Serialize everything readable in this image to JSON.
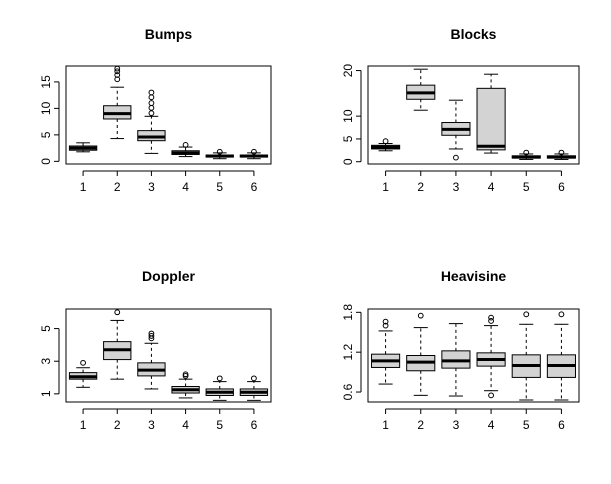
{
  "chart_data": [
    {
      "type": "boxplot",
      "title": "Bumps",
      "categories": [
        "1",
        "2",
        "3",
        "4",
        "5",
        "6"
      ],
      "ylim": [
        -0.5,
        18.0
      ],
      "yticks": [
        0,
        5,
        10,
        15
      ],
      "box_fill": "#d3d3d3",
      "boxes": [
        {
          "whisker_low": 1.8,
          "q1": 2.1,
          "median": 2.5,
          "q3": 2.9,
          "whisker_high": 3.5,
          "outliers": []
        },
        {
          "whisker_low": 4.3,
          "q1": 8.0,
          "median": 9.0,
          "q3": 10.5,
          "whisker_high": 14.0,
          "outliers": [
            15.5,
            16.3,
            17.0,
            17.5
          ]
        },
        {
          "whisker_low": 1.5,
          "q1": 3.9,
          "median": 4.6,
          "q3": 5.8,
          "whisker_high": 8.5,
          "outliers": [
            9.1,
            10.1,
            11.0,
            12.1,
            13.0
          ]
        },
        {
          "whisker_low": 0.9,
          "q1": 1.3,
          "median": 1.6,
          "q3": 2.0,
          "whisker_high": 2.7,
          "outliers": [
            3.1
          ]
        },
        {
          "whisker_low": 0.5,
          "q1": 0.8,
          "median": 1.0,
          "q3": 1.2,
          "whisker_high": 1.6,
          "outliers": [
            1.8
          ]
        },
        {
          "whisker_low": 0.5,
          "q1": 0.8,
          "median": 1.0,
          "q3": 1.2,
          "whisker_high": 1.6,
          "outliers": [
            1.8
          ]
        }
      ]
    },
    {
      "type": "boxplot",
      "title": "Blocks",
      "categories": [
        "1",
        "2",
        "3",
        "4",
        "5",
        "6"
      ],
      "ylim": [
        -0.5,
        21.0
      ],
      "yticks": [
        0,
        5,
        10,
        20
      ],
      "box_fill": "#d3d3d3",
      "boxes": [
        {
          "whisker_low": 2.4,
          "q1": 2.8,
          "median": 3.2,
          "q3": 3.6,
          "whisker_high": 4.0,
          "outliers": [
            4.5
          ]
        },
        {
          "whisker_low": 11.3,
          "q1": 13.7,
          "median": 15.1,
          "q3": 16.8,
          "whisker_high": 20.3,
          "outliers": []
        },
        {
          "whisker_low": 2.8,
          "q1": 5.8,
          "median": 7.1,
          "q3": 8.6,
          "whisker_high": 13.5,
          "outliers": [
            0.9
          ]
        },
        {
          "whisker_low": 1.9,
          "q1": 2.6,
          "median": 3.4,
          "q3": 16.1,
          "whisker_high": 19.2,
          "outliers": []
        },
        {
          "whisker_low": 0.5,
          "q1": 0.8,
          "median": 1.0,
          "q3": 1.3,
          "whisker_high": 1.7,
          "outliers": [
            2.0
          ]
        },
        {
          "whisker_low": 0.5,
          "q1": 0.8,
          "median": 1.0,
          "q3": 1.3,
          "whisker_high": 1.7,
          "outliers": [
            2.0
          ]
        }
      ]
    },
    {
      "type": "boxplot",
      "title": "Doppler",
      "categories": [
        "1",
        "2",
        "3",
        "4",
        "5",
        "6"
      ],
      "ylim": [
        0.5,
        6.2
      ],
      "yticks": [
        1,
        3,
        5
      ],
      "box_fill": "#d3d3d3",
      "boxes": [
        {
          "whisker_low": 1.4,
          "q1": 1.9,
          "median": 2.05,
          "q3": 2.3,
          "whisker_high": 2.6,
          "outliers": [
            2.9
          ]
        },
        {
          "whisker_low": 1.9,
          "q1": 3.1,
          "median": 3.7,
          "q3": 4.2,
          "whisker_high": 5.5,
          "outliers": [
            6.0
          ]
        },
        {
          "whisker_low": 1.3,
          "q1": 2.1,
          "median": 2.45,
          "q3": 2.9,
          "whisker_high": 4.1,
          "outliers": [
            4.4,
            4.55,
            4.7
          ]
        },
        {
          "whisker_low": 0.75,
          "q1": 1.05,
          "median": 1.25,
          "q3": 1.45,
          "whisker_high": 1.9,
          "outliers": [
            2.1,
            2.2
          ]
        },
        {
          "whisker_low": 0.6,
          "q1": 0.9,
          "median": 1.1,
          "q3": 1.3,
          "whisker_high": 1.75,
          "outliers": [
            1.95
          ]
        },
        {
          "whisker_low": 0.6,
          "q1": 0.9,
          "median": 1.1,
          "q3": 1.3,
          "whisker_high": 1.75,
          "outliers": [
            1.95
          ]
        }
      ]
    },
    {
      "type": "boxplot",
      "title": "Heavisine",
      "categories": [
        "1",
        "2",
        "3",
        "4",
        "5",
        "6"
      ],
      "ylim": [
        0.45,
        1.85
      ],
      "yticks": [
        0.6,
        1.2,
        1.8
      ],
      "yticklabels": [
        "0.6",
        "1.2",
        "1.8"
      ],
      "box_fill": "#d3d3d3",
      "boxes": [
        {
          "whisker_low": 0.72,
          "q1": 0.97,
          "median": 1.07,
          "q3": 1.17,
          "whisker_high": 1.52,
          "outliers": [
            1.6,
            1.66
          ]
        },
        {
          "whisker_low": 0.55,
          "q1": 0.92,
          "median": 1.05,
          "q3": 1.15,
          "whisker_high": 1.57,
          "outliers": [
            1.75
          ]
        },
        {
          "whisker_low": 0.54,
          "q1": 0.96,
          "median": 1.07,
          "q3": 1.22,
          "whisker_high": 1.63,
          "outliers": []
        },
        {
          "whisker_low": 0.62,
          "q1": 0.99,
          "median": 1.09,
          "q3": 1.19,
          "whisker_high": 1.6,
          "outliers": [
            1.67,
            1.72,
            0.55
          ]
        },
        {
          "whisker_low": 0.48,
          "q1": 0.82,
          "median": 1.0,
          "q3": 1.16,
          "whisker_high": 1.62,
          "outliers": [
            1.77
          ]
        },
        {
          "whisker_low": 0.48,
          "q1": 0.82,
          "median": 1.0,
          "q3": 1.16,
          "whisker_high": 1.62,
          "outliers": [
            1.77
          ]
        }
      ]
    }
  ]
}
